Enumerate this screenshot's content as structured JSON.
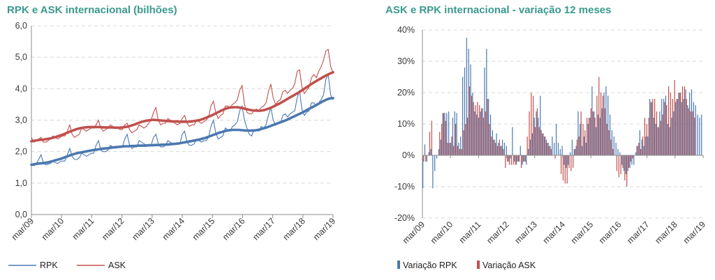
{
  "chart_data": [
    {
      "type": "line",
      "title": "RPK e ASK internacional (bilhões)",
      "ylim": [
        0,
        6
      ],
      "yticks": [
        "0,0",
        "1,0",
        "2,0",
        "3,0",
        "4,0",
        "5,0",
        "6,0"
      ],
      "xticks": [
        "mar/09",
        "mar/10",
        "mar/11",
        "mar/12",
        "mar/13",
        "mar/14",
        "mar/15",
        "mar/16",
        "mar/17",
        "mar/18",
        "mar/19"
      ],
      "grid": true,
      "legend": "bottom",
      "series": [
        {
          "name": "RPK",
          "color": "#4a78b0",
          "monthly": [
            1.6,
            1.55,
            1.6,
            1.75,
            1.9,
            1.65,
            1.58,
            1.6,
            1.62,
            1.7,
            1.65,
            1.62,
            1.68,
            1.7,
            1.7,
            1.9,
            2.1,
            1.85,
            1.75,
            1.75,
            1.8,
            1.95,
            1.9,
            1.85,
            1.9,
            1.95,
            1.95,
            2.2,
            2.35,
            2.05,
            2.0,
            2.0,
            2.05,
            2.2,
            2.15,
            2.1,
            2.15,
            2.15,
            2.15,
            2.4,
            2.55,
            2.2,
            2.1,
            2.15,
            2.15,
            2.35,
            2.3,
            2.25,
            2.2,
            2.2,
            2.2,
            2.45,
            2.55,
            2.25,
            2.15,
            2.15,
            2.2,
            2.35,
            2.3,
            2.25,
            2.25,
            2.25,
            2.25,
            2.55,
            2.65,
            2.3,
            2.2,
            2.2,
            2.25,
            2.4,
            2.35,
            2.3,
            2.35,
            2.35,
            2.45,
            2.8,
            3.0,
            2.6,
            2.4,
            2.45,
            2.5,
            2.75,
            2.7,
            2.65,
            2.8,
            2.85,
            2.95,
            3.3,
            3.45,
            3.0,
            2.75,
            2.55,
            2.5,
            2.7,
            2.7,
            2.65,
            2.8,
            2.75,
            2.85,
            3.15,
            3.4,
            3.0,
            2.85,
            2.9,
            2.9,
            3.15,
            3.2,
            3.1,
            3.2,
            3.25,
            3.3,
            3.7,
            3.95,
            3.35,
            3.15,
            3.25,
            3.3,
            3.55,
            3.55,
            3.45,
            3.55,
            3.65,
            3.8,
            4.3,
            4.45,
            3.8,
            3.65
          ],
          "trend": [
            1.58,
            1.6,
            1.62,
            1.63,
            1.64,
            1.66,
            1.69,
            1.72,
            1.75,
            1.78,
            1.82,
            1.86,
            1.9,
            1.93,
            1.96,
            1.98,
            2.0,
            2.02,
            2.04,
            2.06,
            2.07,
            2.09,
            2.1,
            2.11,
            2.13,
            2.14,
            2.15,
            2.16,
            2.17,
            2.17,
            2.18,
            2.18,
            2.19,
            2.19,
            2.19,
            2.2,
            2.2,
            2.21,
            2.21,
            2.22,
            2.22,
            2.23,
            2.24,
            2.25,
            2.26,
            2.28,
            2.3,
            2.32,
            2.34,
            2.36,
            2.38,
            2.41,
            2.44,
            2.48,
            2.52,
            2.56,
            2.6,
            2.63,
            2.66,
            2.68,
            2.69,
            2.69,
            2.69,
            2.68,
            2.67,
            2.67,
            2.67,
            2.68,
            2.7,
            2.73,
            2.76,
            2.8,
            2.84,
            2.88,
            2.92,
            2.96,
            3.0,
            3.05,
            3.1,
            3.15,
            3.2,
            3.25,
            3.31,
            3.37,
            3.42,
            3.48,
            3.54,
            3.6,
            3.65,
            3.69,
            3.7
          ]
        },
        {
          "name": "ASK",
          "color": "#c0504d",
          "monthly": [
            2.45,
            2.3,
            2.35,
            2.4,
            2.45,
            2.3,
            2.3,
            2.35,
            2.4,
            2.5,
            2.45,
            2.4,
            2.45,
            2.5,
            2.5,
            2.65,
            2.85,
            2.55,
            2.45,
            2.5,
            2.55,
            2.75,
            2.7,
            2.65,
            2.7,
            2.75,
            2.75,
            2.85,
            3.0,
            2.75,
            2.65,
            2.7,
            2.75,
            2.85,
            2.8,
            2.75,
            2.75,
            2.7,
            2.7,
            2.85,
            2.9,
            2.7,
            2.6,
            2.65,
            2.7,
            2.85,
            2.8,
            2.75,
            2.8,
            2.9,
            3.0,
            3.25,
            3.4,
            3.0,
            2.85,
            2.9,
            2.9,
            3.05,
            3.0,
            2.95,
            2.9,
            2.85,
            2.9,
            3.05,
            3.15,
            2.9,
            2.8,
            2.85,
            2.85,
            3.0,
            2.95,
            2.9,
            2.95,
            3.0,
            3.1,
            3.45,
            3.6,
            3.25,
            3.05,
            3.15,
            3.2,
            3.45,
            3.45,
            3.4,
            3.5,
            3.55,
            3.65,
            3.95,
            4.1,
            3.5,
            3.25,
            3.2,
            3.2,
            3.3,
            3.35,
            3.3,
            3.4,
            3.45,
            3.55,
            3.9,
            4.15,
            3.7,
            3.5,
            3.6,
            3.65,
            3.9,
            3.95,
            3.85,
            3.95,
            4.0,
            4.15,
            4.55,
            4.6,
            4.05,
            3.85,
            3.95,
            4.05,
            4.35,
            4.45,
            4.35,
            4.55,
            4.7,
            4.9,
            5.2,
            5.25,
            4.7,
            4.5
          ],
          "trend": [
            2.33,
            2.35,
            2.37,
            2.38,
            2.4,
            2.42,
            2.45,
            2.49,
            2.53,
            2.58,
            2.63,
            2.68,
            2.72,
            2.75,
            2.77,
            2.78,
            2.78,
            2.78,
            2.78,
            2.77,
            2.77,
            2.77,
            2.76,
            2.76,
            2.77,
            2.79,
            2.82,
            2.86,
            2.91,
            2.95,
            2.98,
            3.0,
            3.01,
            3.0,
            2.99,
            2.98,
            2.97,
            2.96,
            2.96,
            2.95,
            2.95,
            2.95,
            2.96,
            2.98,
            3.0,
            3.04,
            3.09,
            3.14,
            3.2,
            3.26,
            3.32,
            3.37,
            3.4,
            3.41,
            3.41,
            3.39,
            3.36,
            3.33,
            3.31,
            3.3,
            3.3,
            3.32,
            3.36,
            3.41,
            3.47,
            3.53,
            3.6,
            3.67,
            3.74,
            3.81,
            3.88,
            3.96,
            4.04,
            4.12,
            4.2,
            4.27,
            4.34,
            4.41,
            4.47,
            4.52
          ]
        }
      ]
    },
    {
      "type": "bar",
      "title": "ASK e RPK internacional - variação 12 meses",
      "ylim": [
        -20,
        40
      ],
      "yticks": [
        "-20%",
        "-10%",
        "0%",
        "10%",
        "20%",
        "30%",
        "40%"
      ],
      "xticks": [
        "mar/09",
        "mar/10",
        "mar/11",
        "mar/12",
        "mar/13",
        "mar/14",
        "mar/15",
        "mar/16",
        "mar/17",
        "mar/18",
        "mar/19"
      ],
      "grid": true,
      "legend": "bottom",
      "series": [
        {
          "name": "Variação RPK",
          "color": "#4a78b0",
          "values": [
            -10.5,
            3.5,
            -2,
            1,
            2,
            -10.5,
            -5,
            -1,
            2,
            5,
            13.5,
            13.5,
            13.5,
            14,
            4,
            12,
            14,
            13.5,
            4,
            6,
            25,
            28,
            37.5,
            34,
            29,
            20,
            14,
            13,
            12,
            14,
            15,
            28,
            34,
            18,
            13,
            8,
            5,
            7,
            4,
            3,
            5,
            4,
            3,
            -2,
            -1,
            9,
            -2,
            -3,
            -2,
            3,
            -3,
            -2,
            -3,
            2,
            5,
            7,
            12,
            14,
            12,
            19,
            7,
            6,
            5,
            4,
            3,
            6,
            4,
            10,
            4,
            2,
            3,
            -3,
            -4,
            -3,
            1,
            5,
            2,
            3,
            14,
            10,
            3,
            6,
            4,
            10,
            12,
            22,
            14,
            9,
            13,
            12,
            15,
            20,
            22,
            19,
            13,
            8,
            6,
            4,
            2,
            1,
            -3,
            -5,
            -6,
            -5,
            -4,
            -3,
            -3,
            1,
            3,
            8,
            5,
            3,
            6,
            6,
            18,
            17,
            12,
            10,
            9,
            14,
            18,
            18,
            19,
            10,
            9,
            12,
            14,
            17,
            18,
            20,
            17,
            18,
            21,
            16,
            20,
            21,
            17,
            16,
            13,
            12,
            13
          ]
        },
        {
          "name": "Variação ASK",
          "color": "#c0504d",
          "values": [
            -2,
            -2,
            0,
            7.5,
            11,
            0,
            0,
            0,
            7.5,
            10,
            13.5,
            11,
            4,
            4,
            6,
            3,
            10,
            3,
            2,
            2,
            8,
            10,
            12,
            22,
            19,
            17,
            16,
            17,
            16,
            15,
            12,
            14,
            18,
            10,
            6,
            5,
            4,
            3,
            5,
            3,
            2,
            -4,
            -2,
            -3,
            -3,
            -3,
            -3,
            -2,
            -2,
            -4,
            -2,
            -2,
            6,
            14,
            20,
            19,
            9,
            15,
            9,
            8,
            7,
            6,
            4,
            3,
            2,
            0,
            -1,
            0,
            0,
            -6,
            -8,
            -9,
            -9,
            -4,
            -5,
            -4,
            2,
            5,
            6,
            14,
            10,
            8,
            12,
            12,
            15,
            14,
            12,
            19,
            25,
            20,
            19,
            15,
            10,
            8,
            5,
            2,
            0,
            -5,
            -7,
            -6,
            -4,
            -8,
            -10,
            -4,
            -2,
            -1,
            0,
            3,
            4,
            2,
            6,
            12,
            10,
            12,
            17,
            18,
            18,
            14,
            9,
            11,
            13,
            17,
            16,
            22,
            20,
            18,
            24,
            18,
            20,
            20,
            22,
            22,
            18,
            15,
            14,
            14,
            12
          ]
        }
      ]
    }
  ]
}
